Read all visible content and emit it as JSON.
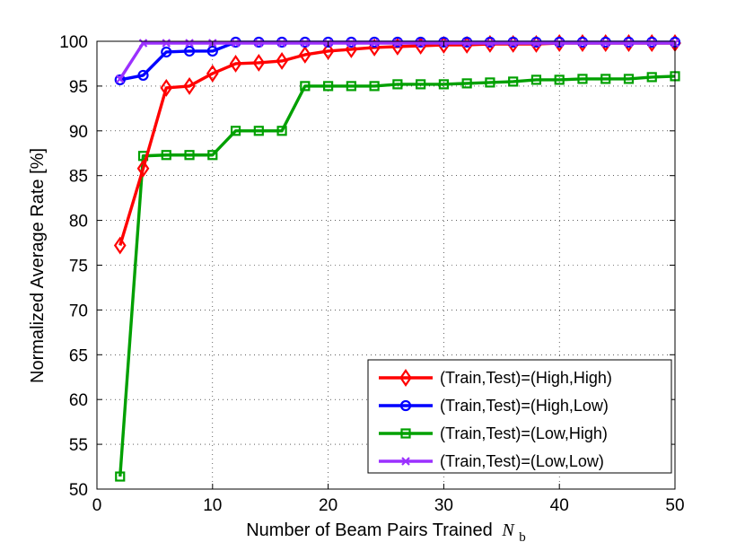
{
  "chart_data": {
    "type": "line",
    "xlabel": "Number of Beam Pairs Trained",
    "xlabel_symbol": "N",
    "xlabel_subscript": "b",
    "ylabel": "Normalized Average Rate [%]",
    "xlim": [
      0,
      50
    ],
    "ylim": [
      50,
      100
    ],
    "xticks": [
      "0",
      "10",
      "20",
      "30",
      "40",
      "50"
    ],
    "yticks": [
      "50",
      "55",
      "60",
      "65",
      "70",
      "75",
      "80",
      "85",
      "90",
      "95",
      "100"
    ],
    "grid": true,
    "legend_position": "bottom-right",
    "x": [
      2,
      4,
      6,
      8,
      10,
      12,
      14,
      16,
      18,
      20,
      22,
      24,
      26,
      28,
      30,
      32,
      34,
      36,
      38,
      40,
      42,
      44,
      46,
      48,
      50
    ],
    "series": [
      {
        "name": "(Train,Test)=(High,High)",
        "color": "#ff0000",
        "marker": "diamond",
        "values": [
          77.2,
          85.8,
          94.8,
          95.0,
          96.4,
          97.5,
          97.6,
          97.8,
          98.5,
          98.9,
          99.1,
          99.3,
          99.4,
          99.5,
          99.6,
          99.6,
          99.7,
          99.7,
          99.7,
          99.8,
          99.8,
          99.8,
          99.8,
          99.8,
          99.8
        ]
      },
      {
        "name": "(Train,Test)=(High,Low)",
        "color": "#0000ff",
        "marker": "circle",
        "values": [
          95.7,
          96.2,
          98.8,
          98.9,
          98.9,
          99.9,
          99.9,
          99.9,
          99.9,
          99.9,
          99.9,
          99.9,
          99.9,
          99.9,
          99.9,
          99.9,
          99.9,
          99.9,
          99.9,
          99.9,
          99.9,
          99.9,
          99.9,
          99.9,
          99.9
        ]
      },
      {
        "name": "(Train,Test)=(Low,High)",
        "color": "#00a000",
        "marker": "square",
        "values": [
          51.4,
          87.2,
          87.3,
          87.3,
          87.3,
          90.0,
          90.0,
          90.0,
          95.0,
          95.0,
          95.0,
          95.0,
          95.2,
          95.2,
          95.2,
          95.3,
          95.4,
          95.5,
          95.7,
          95.7,
          95.8,
          95.8,
          95.8,
          96.0,
          96.1
        ]
      },
      {
        "name": "(Train,Test)=(Low,Low)",
        "color": "#9b30ff",
        "marker": "x",
        "values": [
          95.8,
          99.8,
          99.8,
          99.8,
          99.8,
          99.8,
          99.8,
          99.8,
          99.8,
          99.8,
          99.8,
          99.8,
          99.8,
          99.8,
          99.8,
          99.8,
          99.8,
          99.8,
          99.8,
          99.8,
          99.8,
          99.8,
          99.8,
          99.8,
          99.8
        ]
      }
    ]
  }
}
